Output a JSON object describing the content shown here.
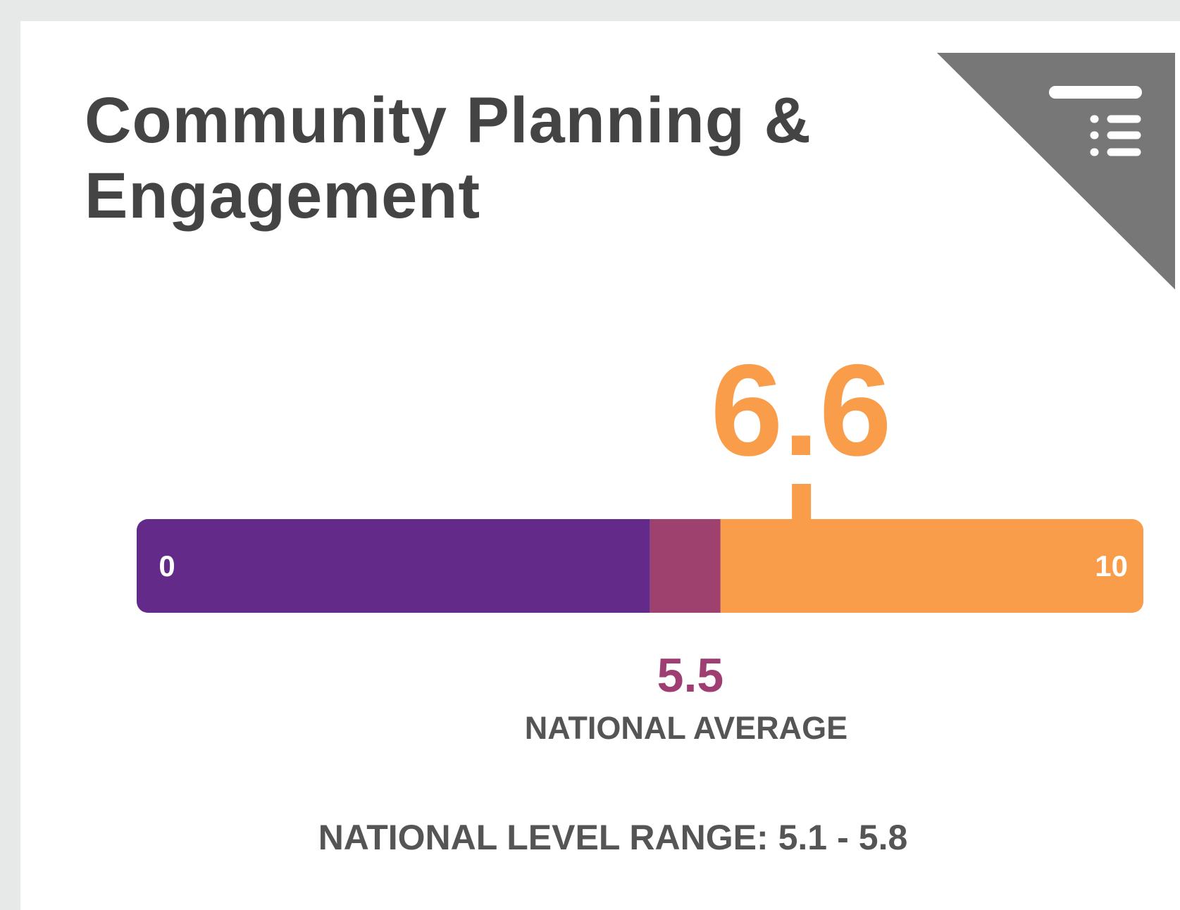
{
  "card": {
    "title": "Community Planning & Engagement",
    "scale": {
      "min": 0,
      "max": 10
    },
    "score": 6.6,
    "national_average": {
      "value": 5.5,
      "label": "NATIONAL AVERAGE"
    },
    "national_range": {
      "label": "NATIONAL LEVEL RANGE:",
      "low": 5.1,
      "separator": "-",
      "high": 5.8
    },
    "colors": {
      "below": "#632a8a",
      "range": "#9e416f",
      "above": "#f99d4a",
      "average": "#9e3e72"
    }
  }
}
